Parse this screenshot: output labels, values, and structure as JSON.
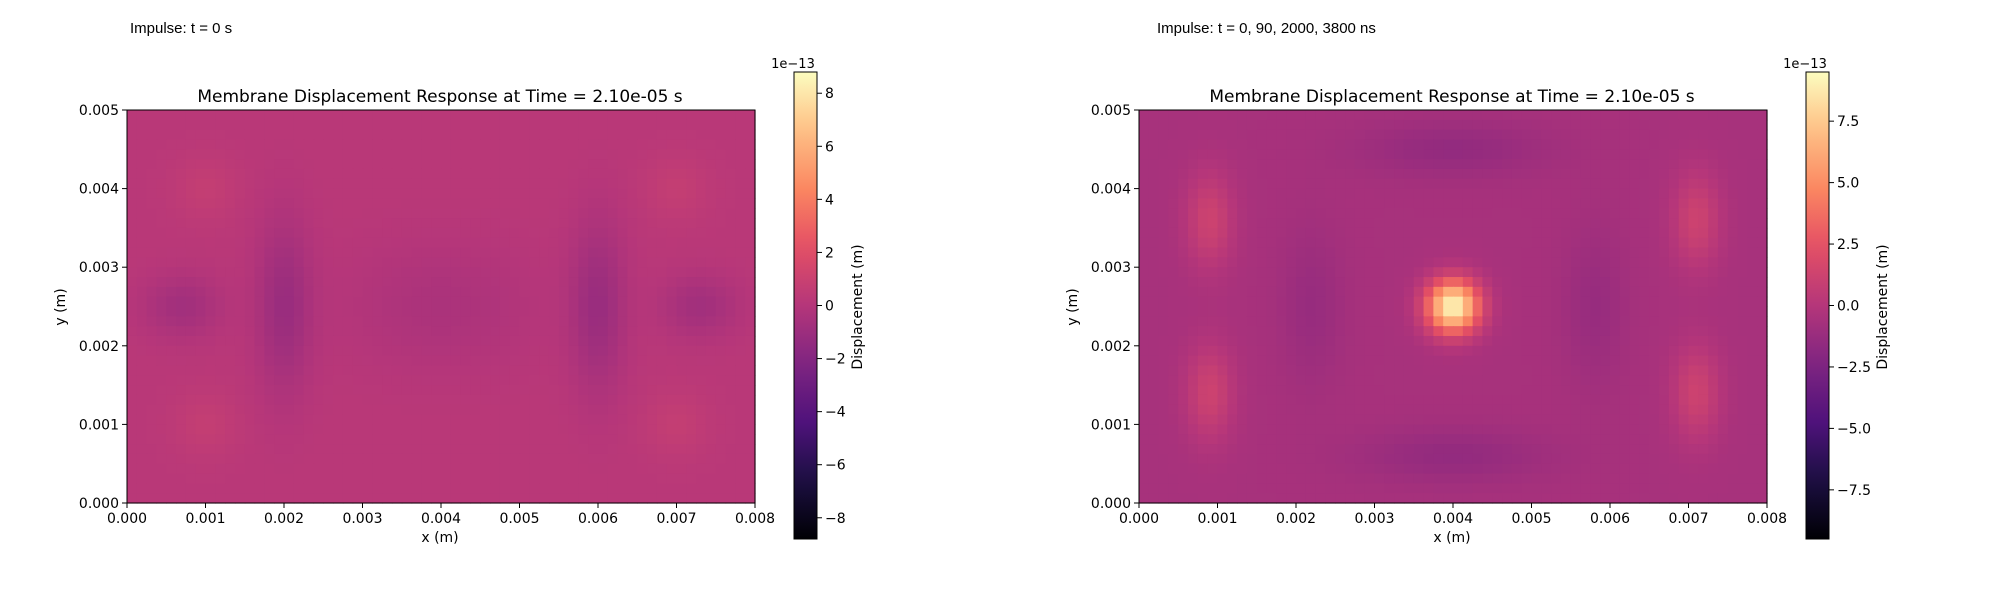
{
  "figure": {
    "panels": [
      {
        "caption": "Impulse: t = 0 s"
      },
      {
        "caption": "Impulse: t = 0, 90, 2000, 3800 ns"
      }
    ]
  },
  "chart_data": [
    {
      "type": "heatmap",
      "title": "Membrane Displacement Response at Time = 2.10e-05 s",
      "xlabel": "x (m)",
      "ylabel": "y (m)",
      "xlim": [
        0.0,
        0.008
      ],
      "ylim": [
        0.0,
        0.005
      ],
      "xticks": [
        "0.000",
        "0.001",
        "0.002",
        "0.003",
        "0.004",
        "0.005",
        "0.006",
        "0.007",
        "0.008"
      ],
      "yticks": [
        "0.000",
        "0.001",
        "0.002",
        "0.003",
        "0.004",
        "0.005"
      ],
      "colormap": "magma",
      "colorbar": {
        "label": "Displacement (m)",
        "offset_text": "1e−13",
        "vmin": -8.8,
        "vmax": 8.8,
        "ticks": [
          8,
          6,
          4,
          2,
          0,
          -2,
          -4,
          -6,
          -8
        ],
        "tick_labels": [
          "8",
          "6",
          "4",
          "2",
          "0",
          "−2",
          "−4",
          "−6",
          "−8"
        ]
      },
      "field_description": {
        "base_value": 0.2,
        "features": [
          {
            "x": 0.002,
            "y": 0.0025,
            "value": -1.3
          },
          {
            "x": 0.006,
            "y": 0.0025,
            "value": -1.3
          },
          {
            "x": 0.0007,
            "y": 0.0025,
            "value": -1.0
          },
          {
            "x": 0.0073,
            "y": 0.0025,
            "value": -1.0
          },
          {
            "x": 0.004,
            "y": 0.0025,
            "value": -0.6
          }
        ]
      }
    },
    {
      "type": "heatmap",
      "title": "Membrane Displacement Response at Time = 2.10e-05 s",
      "xlabel": "x (m)",
      "ylabel": "y (m)",
      "xlim": [
        0.0,
        0.008
      ],
      "ylim": [
        0.0,
        0.005
      ],
      "xticks": [
        "0.000",
        "0.001",
        "0.002",
        "0.003",
        "0.004",
        "0.005",
        "0.006",
        "0.007",
        "0.008"
      ],
      "yticks": [
        "0.000",
        "0.001",
        "0.002",
        "0.003",
        "0.004",
        "0.005"
      ],
      "colormap": "magma",
      "colorbar": {
        "label": "Displacement (m)",
        "offset_text": "1e−13",
        "vmin": -9.5,
        "vmax": 9.5,
        "ticks": [
          7.5,
          5.0,
          2.5,
          0.0,
          -2.5,
          -5.0,
          -7.5
        ],
        "tick_labels": [
          "7.5",
          "5.0",
          "2.5",
          "0.0",
          "−2.5",
          "−5.0",
          "−7.5"
        ]
      },
      "field_description": {
        "base_value": -0.6,
        "features": [
          {
            "x": 0.004,
            "y": 0.0025,
            "value": 9.3
          },
          {
            "x": 0.001,
            "y": 0.0036,
            "value": 1.2
          },
          {
            "x": 0.001,
            "y": 0.0014,
            "value": 1.2
          },
          {
            "x": 0.007,
            "y": 0.0036,
            "value": 1.2
          },
          {
            "x": 0.007,
            "y": 0.0014,
            "value": 1.2
          },
          {
            "x": 0.004,
            "y": 0.0045,
            "value": -1.4
          },
          {
            "x": 0.004,
            "y": 0.0006,
            "value": -1.4
          }
        ]
      }
    }
  ]
}
